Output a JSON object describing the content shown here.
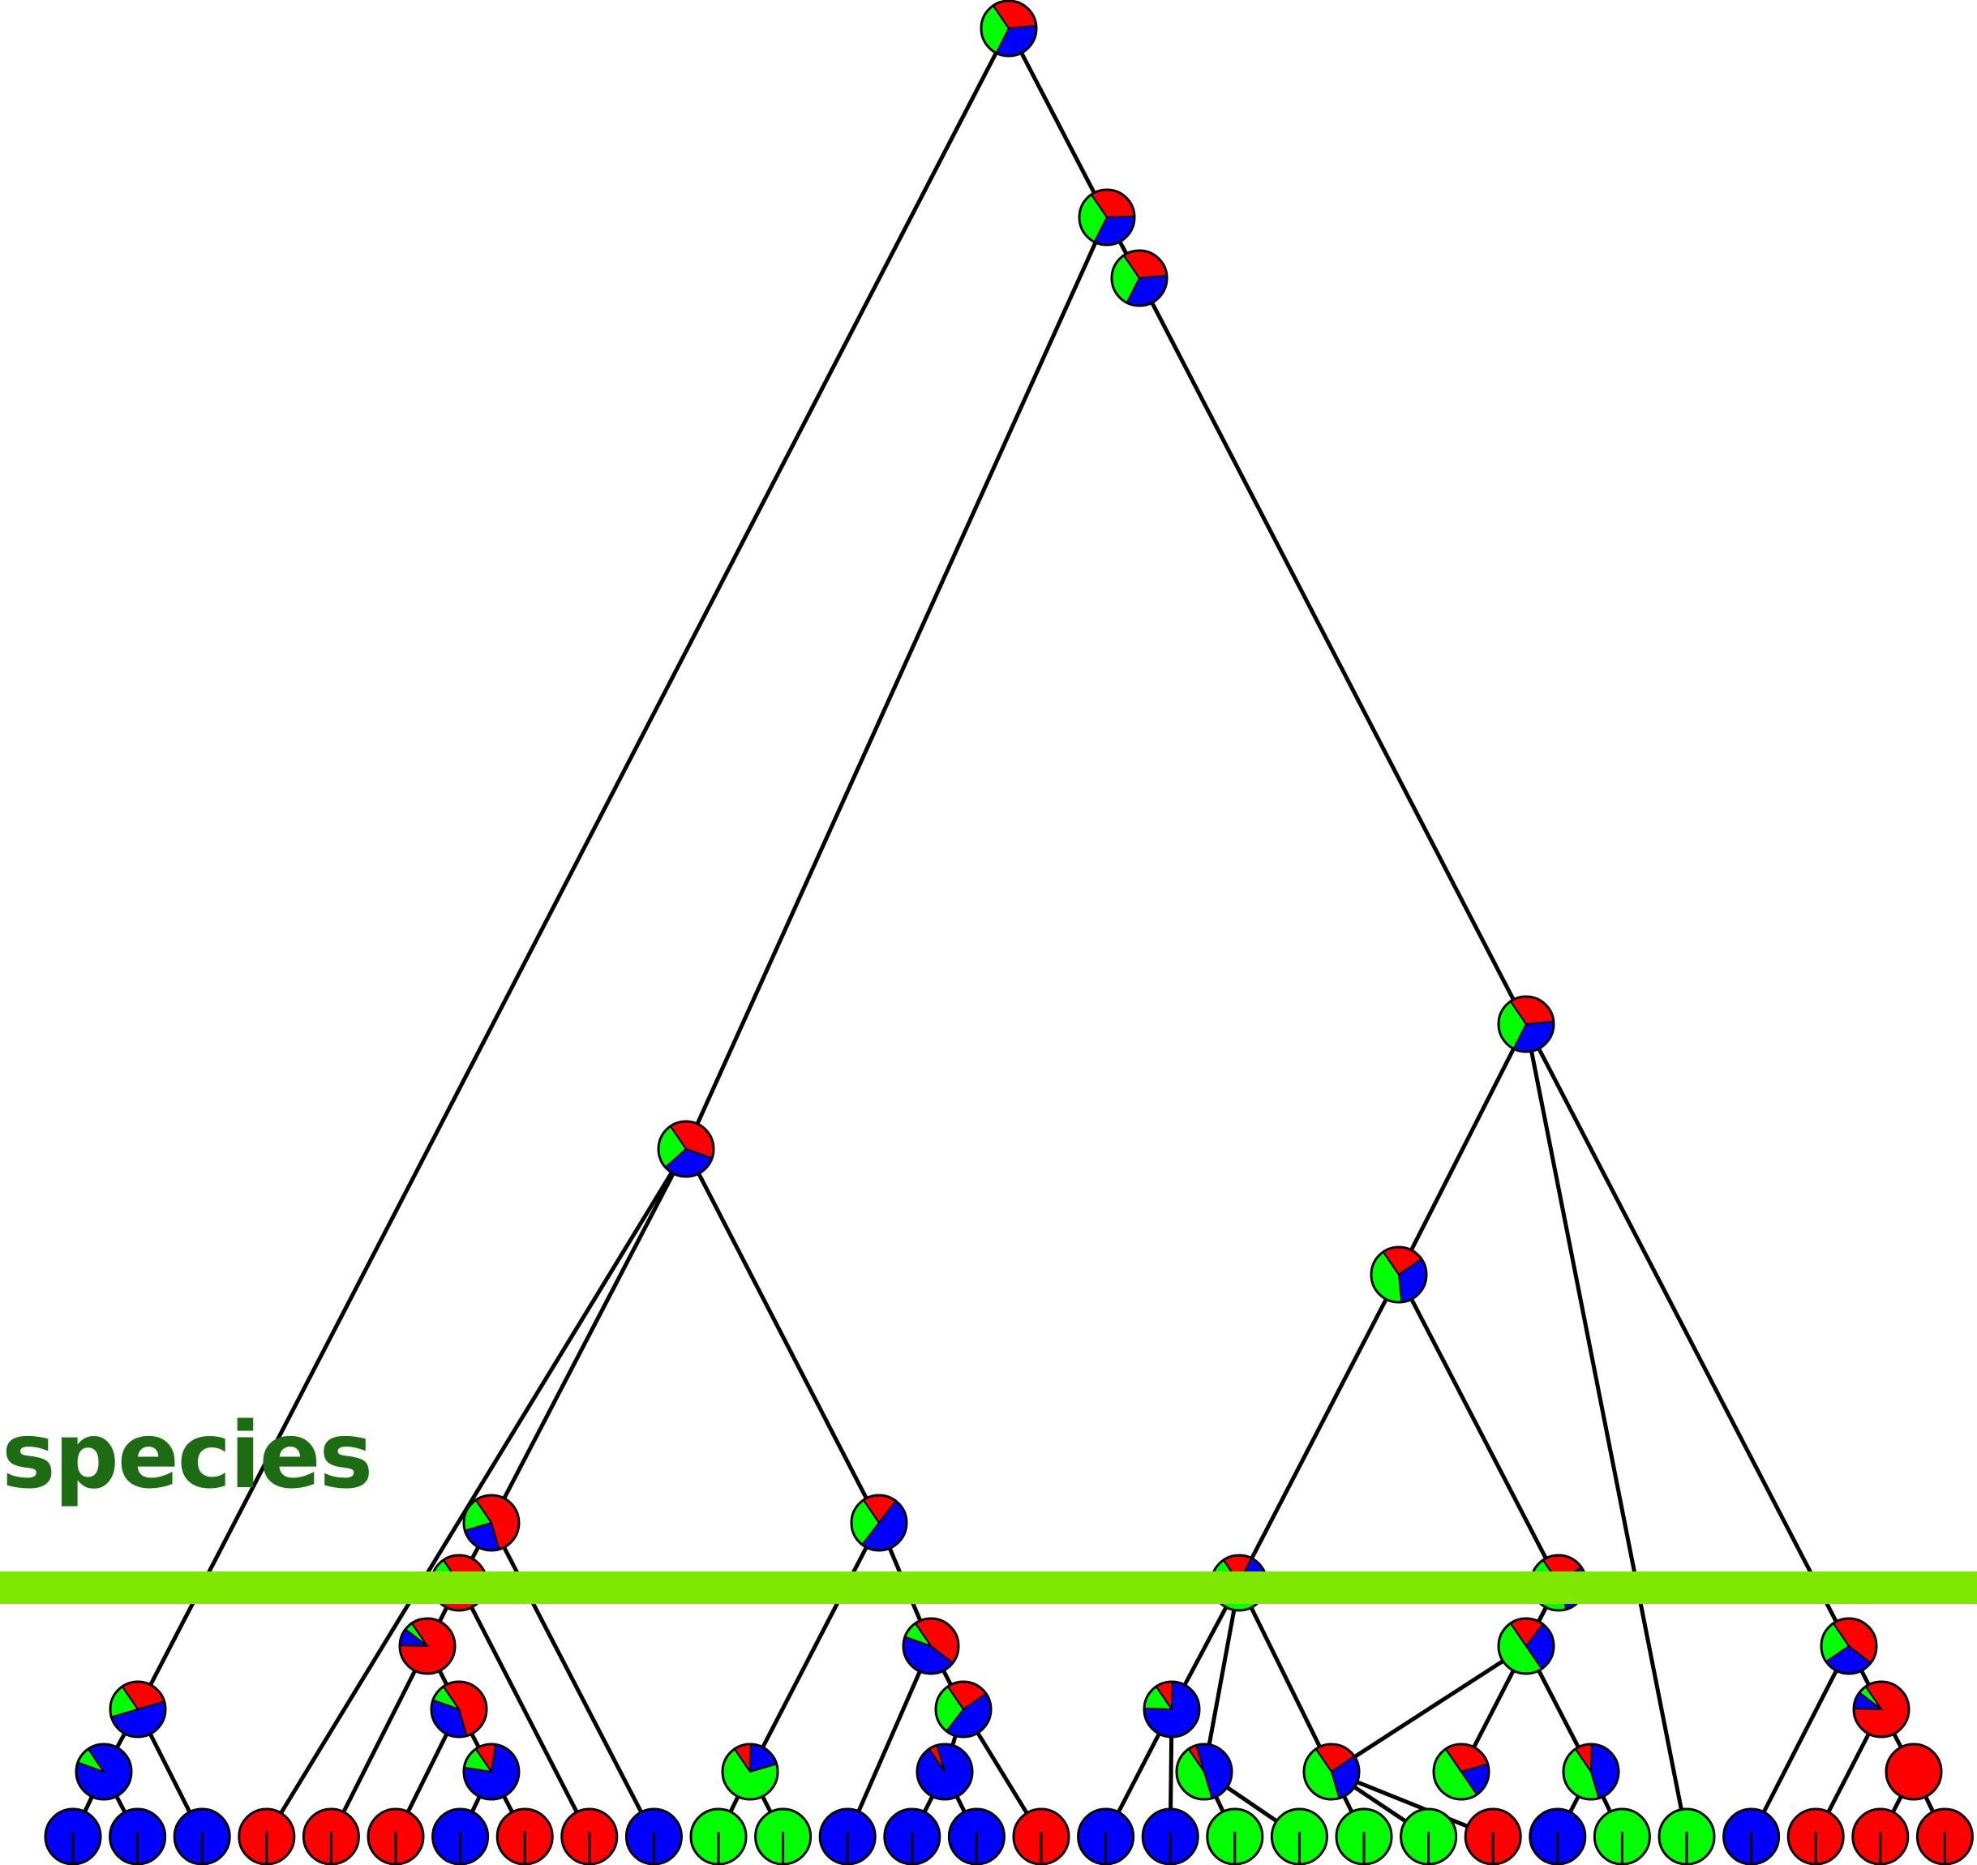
{
  "label": {
    "text": "species"
  },
  "colors": {
    "red": "#ff0000",
    "green": "#00ff00",
    "blue": "#0000ff",
    "line": "#000000",
    "species_bar": "#7fe800",
    "label": "#1d6b12"
  },
  "leaves": [
    "blue",
    "blue",
    "blue",
    "red",
    "red",
    "red",
    "blue",
    "red",
    "red",
    "blue",
    "green",
    "green",
    "blue",
    "blue",
    "blue",
    "red",
    "blue",
    "blue",
    "green",
    "green",
    "green",
    "green",
    "red",
    "blue",
    "green",
    "green",
    "blue",
    "red",
    "red",
    "red"
  ],
  "internal_nodes": [
    {
      "id": "root",
      "pie": {
        "red": 0.33,
        "blue": 0.34,
        "green": 0.33
      }
    },
    {
      "id": "n2",
      "pie": {
        "red": 0.34,
        "blue": 0.33,
        "green": 0.33
      }
    },
    {
      "id": "n3",
      "pie": {
        "red": 0.33,
        "blue": 0.34,
        "green": 0.33
      }
    },
    {
      "id": "n4",
      "pie": {
        "red": 0.33,
        "blue": 0.34,
        "green": 0.33
      }
    },
    {
      "id": "n5",
      "pie": {
        "red": 0.25,
        "blue": 0.33,
        "green": 0.42
      }
    },
    {
      "id": "n6",
      "pie": {
        "red": 0.17,
        "blue": 0.23,
        "green": 0.6
      }
    },
    {
      "id": "n7",
      "pie": {
        "red": 0.4,
        "blue": 0.33,
        "green": 0.27
      }
    },
    {
      "id": "n8",
      "pie": {
        "red": 0.2,
        "blue": 0.5,
        "green": 0.3
      }
    },
    {
      "id": "n9",
      "pie": {
        "red": 0.55,
        "blue": 0.25,
        "green": 0.2
      }
    },
    {
      "id": "n10",
      "pie": {
        "red": 0.75,
        "blue": 0.15,
        "green": 0.1
      }
    },
    {
      "id": "n11",
      "pie": {
        "red": 0.85,
        "blue": 0.1,
        "green": 0.05
      }
    },
    {
      "id": "n12",
      "pie": {
        "red": 0.45,
        "blue": 0.45,
        "green": 0.1
      }
    },
    {
      "id": "n13",
      "pie": {
        "red": 0.25,
        "blue": 0.45,
        "green": 0.3
      }
    },
    {
      "id": "n14",
      "pie": {
        "red": 0.05,
        "blue": 0.95,
        "green": 0.0
      }
    },
    {
      "id": "n15",
      "pie": {
        "red": 0.1,
        "blue": 0.75,
        "green": 0.15
      }
    },
    {
      "id": "n16",
      "pie": {
        "red": 0.55,
        "blue": 0.35,
        "green": 0.1
      }
    },
    {
      "id": "n17",
      "pie": {
        "red": 0.1,
        "blue": 0.2,
        "green": 0.7
      }
    },
    {
      "id": "n18",
      "pie": {
        "red": 0.12,
        "blue": 0.75,
        "green": 0.13
      }
    },
    {
      "id": "n19",
      "pie": {
        "red": 0.3,
        "blue": 0.5,
        "green": 0.2
      }
    },
    {
      "id": "n20",
      "pie": {
        "red": 0.0,
        "blue": 0.9,
        "green": 0.1
      }
    },
    {
      "id": "n21",
      "pie": {
        "red": 0.05,
        "blue": 0.5,
        "green": 0.45
      }
    },
    {
      "id": "n22",
      "pie": {
        "red": 0.25,
        "blue": 0.3,
        "green": 0.45
      }
    },
    {
      "id": "n23",
      "pie": {
        "red": 0.2,
        "blue": 0.3,
        "green": 0.5
      }
    },
    {
      "id": "n24",
      "pie": {
        "red": 0.25,
        "blue": 0.3,
        "green": 0.45
      }
    },
    {
      "id": "n25",
      "pie": {
        "red": 0.3,
        "blue": 0.2,
        "green": 0.5
      }
    },
    {
      "id": "n26",
      "pie": {
        "red": 0.1,
        "blue": 0.45,
        "green": 0.45
      }
    },
    {
      "id": "n27",
      "pie": {
        "red": 0.45,
        "blue": 0.3,
        "green": 0.25
      }
    },
    {
      "id": "n28",
      "pie": {
        "red": 0.85,
        "blue": 0.1,
        "green": 0.05
      }
    },
    {
      "id": "n29",
      "pie": {
        "red": 1.0,
        "blue": 0.0,
        "green": 0.0
      }
    }
  ]
}
